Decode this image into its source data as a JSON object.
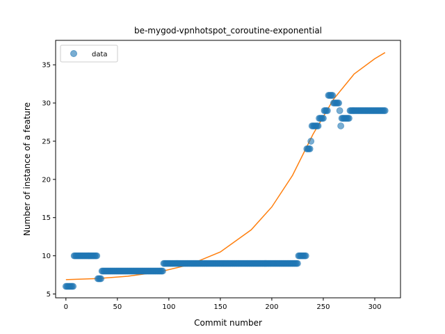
{
  "chart_data": {
    "type": "scatter",
    "title": "be-mygod-vpnhotspot_coroutine-exponential",
    "xlabel": "Commit number",
    "ylabel": "Number of instance of a feature",
    "xlim": [
      -10,
      325
    ],
    "ylim": [
      4.5,
      38.2
    ],
    "xticks": [
      0,
      50,
      100,
      150,
      200,
      250,
      300
    ],
    "yticks": [
      5,
      10,
      15,
      20,
      25,
      30,
      35
    ],
    "grid": false,
    "legend": {
      "position": "top-left",
      "entries": [
        "data"
      ]
    },
    "colors": {
      "data": "#1f77b4",
      "fit": "#ff7f0e"
    },
    "series": [
      {
        "name": "data",
        "kind": "scatter",
        "runs": [
          {
            "x": [
              0,
              7
            ],
            "y": 6
          },
          {
            "x": [
              8,
              30
            ],
            "y": 10
          },
          {
            "x": [
              31,
              34
            ],
            "y": 7
          },
          {
            "x": [
              35,
              94
            ],
            "y": 8
          },
          {
            "x": [
              95,
              225
            ],
            "y": 9
          },
          {
            "x": [
              226,
              233
            ],
            "y": 10
          },
          {
            "x": [
              234,
              237
            ],
            "y": 24
          },
          {
            "x": [
              238,
              238
            ],
            "y": 25
          },
          {
            "x": [
              239,
              245
            ],
            "y": 27
          },
          {
            "x": [
              246,
              250
            ],
            "y": 28
          },
          {
            "x": [
              251,
              254
            ],
            "y": 29
          },
          {
            "x": [
              255,
              259
            ],
            "y": 31
          },
          {
            "x": [
              260,
              265
            ],
            "y": 30
          },
          {
            "x": [
              266,
              266
            ],
            "y": 29
          },
          {
            "x": [
              267,
              267
            ],
            "y": 27
          },
          {
            "x": [
              268,
              275
            ],
            "y": 28
          },
          {
            "x": [
              276,
              310
            ],
            "y": 29
          }
        ]
      },
      {
        "name": "fit",
        "kind": "line",
        "points": [
          [
            0,
            6.88
          ],
          [
            30,
            7.02
          ],
          [
            60,
            7.32
          ],
          [
            90,
            7.87
          ],
          [
            120,
            8.83
          ],
          [
            150,
            10.5
          ],
          [
            180,
            13.4
          ],
          [
            200,
            16.4
          ],
          [
            220,
            20.5
          ],
          [
            240,
            25.9
          ],
          [
            260,
            30.5
          ],
          [
            280,
            33.8
          ],
          [
            300,
            35.8
          ],
          [
            310,
            36.6
          ]
        ]
      }
    ]
  }
}
